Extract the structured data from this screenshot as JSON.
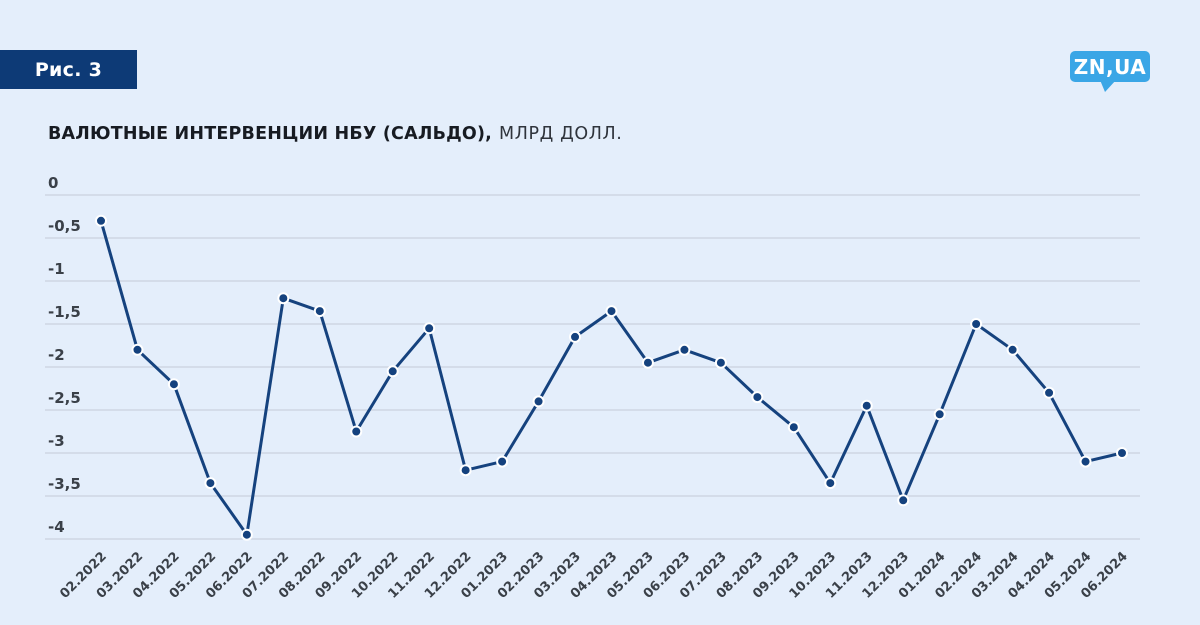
{
  "figure_label": "Рис. 3",
  "logo": {
    "text": "ZN,UA"
  },
  "title": {
    "bold": "ВАЛЮТНЫЕ ИНТЕРВЕНЦИИ НБУ (САЛЬДО),",
    "regular": "МЛРД ДОЛЛ."
  },
  "colors": {
    "background": "#e4eefb",
    "badge_bg": "#0d3a76",
    "logo_bg": "#3aa6e6",
    "line": "#15427e",
    "marker_fill": "#15427e",
    "marker_stroke": "#ffffff",
    "gridline": "#c4cbd7",
    "axis_text": "#3a4048",
    "title_bold": "#171b22",
    "title_regular": "#2f343c"
  },
  "chart_data": {
    "type": "line",
    "title": "ВАЛЮТНЫЕ ИНТЕРВЕНЦИИ НБУ (САЛЬДО), МЛРД ДОЛЛ.",
    "xlabel": "",
    "ylabel": "",
    "ylim": [
      -4,
      0
    ],
    "grid": true,
    "legend": "none",
    "marker": "circle",
    "decimal_separator": ",",
    "categories": [
      "02.2022",
      "03.2022",
      "04.2022",
      "05.2022",
      "06.2022",
      "07.2022",
      "08.2022",
      "09.2022",
      "10.2022",
      "11.2022",
      "12.2022",
      "01.2023",
      "02.2023",
      "03.2023",
      "04.2023",
      "05.2023",
      "06.2023",
      "07.2023",
      "08.2023",
      "09.2023",
      "10.2023",
      "11.2023",
      "12.2023",
      "01.2024",
      "02.2024",
      "03.2024",
      "04.2024",
      "05.2024",
      "06.2024"
    ],
    "values": [
      -0.3,
      -1.8,
      -2.2,
      -3.35,
      -3.95,
      -1.2,
      -1.35,
      -2.75,
      -2.05,
      -1.55,
      -3.2,
      -3.1,
      -2.4,
      -1.65,
      -1.35,
      -1.95,
      -1.8,
      -1.95,
      -2.35,
      -2.7,
      -3.35,
      -2.45,
      -3.55,
      -2.55,
      -1.5,
      -1.8,
      -2.3,
      -3.1,
      -3.0
    ],
    "y_ticks": {
      "values": [
        0,
        -0.5,
        -1,
        -1.5,
        -2,
        -2.5,
        -3,
        -3.5,
        -4
      ],
      "labels": [
        "0",
        "-0,5",
        "-1",
        "-1,5",
        "-2",
        "-2,5",
        "-3",
        "-3,5",
        "-4"
      ]
    }
  }
}
